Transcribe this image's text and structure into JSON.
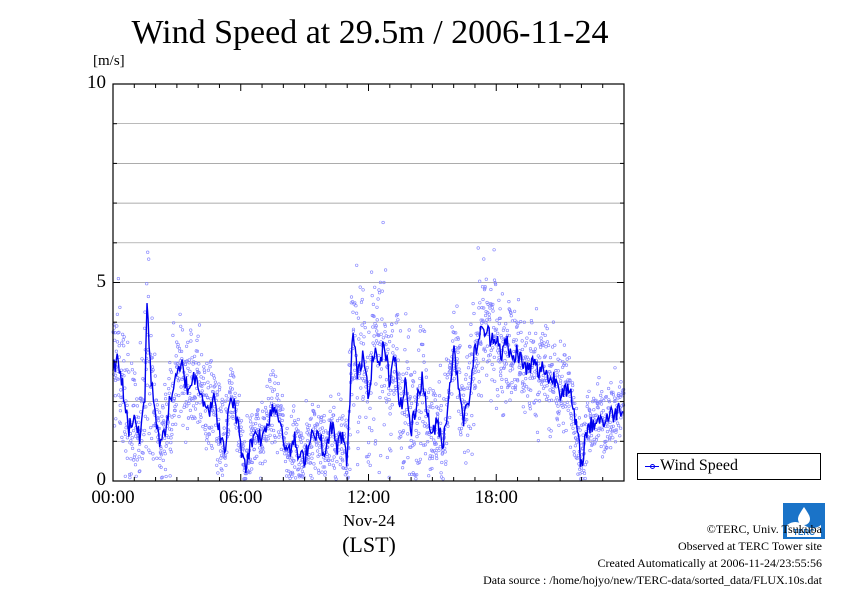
{
  "page": {
    "title": "Wind Speed at 29.5m / 2006-11-24",
    "credits": [
      "©TERC, Univ. Tsukuba",
      "Observed at TERC Tower site",
      "Created Automatically at 2006-11-24/23:55:56",
      "Data source : /home/hojyo/new/TERC-data/sorted_data/FLUX.10s.dat"
    ],
    "logo_text": "TERC"
  },
  "chart_data": {
    "type": "scatter",
    "title": "Wind Speed at 29.5m / 2006-11-24",
    "ylabel": "[m/s]",
    "xdate": "Nov-24",
    "xlabel": "(LST)",
    "x_unit": "hour (LST)",
    "xlim": [
      0,
      24
    ],
    "ylim": [
      0,
      10
    ],
    "x_ticks": [
      {
        "value": 0,
        "label": "00:00"
      },
      {
        "value": 6,
        "label": "06:00"
      },
      {
        "value": 12,
        "label": "12:00"
      },
      {
        "value": 18,
        "label": "18:00"
      }
    ],
    "y_ticks": [
      {
        "value": 0,
        "label": "0"
      },
      {
        "value": 5,
        "label": "5"
      },
      {
        "value": 10,
        "label": "10"
      }
    ],
    "grid": true,
    "legend": {
      "position": "bottom-right",
      "entries": [
        "Wind Speed"
      ]
    },
    "color": "#0000ee",
    "scatter_color": "#8080ff",
    "series": [
      {
        "name": "Wind Speed",
        "mean_line": {
          "x": [
            0,
            0.25,
            0.5,
            0.75,
            1.0,
            1.25,
            1.5,
            1.6,
            1.75,
            2.0,
            2.25,
            2.5,
            2.75,
            3.0,
            3.25,
            3.5,
            3.75,
            4.0,
            4.25,
            4.5,
            4.75,
            5.0,
            5.25,
            5.5,
            5.75,
            6.0,
            6.25,
            6.5,
            6.75,
            7.0,
            7.25,
            7.5,
            7.75,
            8.0,
            8.25,
            8.5,
            8.75,
            9.0,
            9.25,
            9.5,
            9.75,
            10.0,
            10.25,
            10.5,
            10.75,
            11.0,
            11.25,
            11.5,
            11.75,
            12.0,
            12.25,
            12.5,
            12.75,
            13.0,
            13.25,
            13.5,
            13.75,
            14.0,
            14.25,
            14.5,
            14.75,
            15.0,
            15.25,
            15.5,
            15.75,
            16.0,
            16.25,
            16.5,
            16.75,
            17.0,
            17.25,
            17.5,
            17.75,
            18.0,
            18.25,
            18.5,
            18.75,
            19.0,
            19.25,
            19.5,
            19.75,
            20.0,
            20.25,
            20.5,
            20.75,
            21.0,
            21.25,
            21.5,
            21.75,
            22.0,
            22.25,
            22.5,
            22.75,
            23.0,
            23.25,
            23.5,
            23.75,
            23.95
          ],
          "y": [
            2.8,
            3.1,
            2.2,
            1.3,
            1.7,
            1.0,
            2.2,
            4.6,
            2.8,
            1.7,
            0.8,
            1.5,
            2.2,
            2.6,
            2.9,
            2.3,
            2.6,
            2.5,
            2.1,
            1.8,
            2.0,
            1.3,
            0.6,
            2.2,
            1.8,
            0.9,
            0.4,
            1.0,
            1.3,
            1.0,
            1.5,
            1.9,
            1.7,
            1.2,
            0.6,
            1.1,
            0.5,
            0.6,
            1.1,
            1.3,
            1.0,
            0.6,
            1.5,
            0.8,
            1.2,
            0.4,
            3.8,
            2.6,
            3.3,
            2.2,
            3.4,
            2.8,
            3.5,
            2.4,
            3.2,
            1.8,
            2.5,
            1.2,
            2.0,
            2.6,
            1.8,
            1.1,
            1.5,
            0.9,
            2.1,
            3.3,
            2.4,
            1.5,
            2.2,
            3.3,
            3.7,
            3.8,
            3.6,
            3.7,
            3.2,
            3.5,
            3.0,
            3.3,
            2.9,
            2.8,
            3.0,
            2.7,
            2.9,
            2.5,
            2.6,
            2.3,
            2.4,
            2.1,
            1.4,
            0.4,
            1.3,
            1.4,
            1.6,
            1.5,
            1.6,
            1.7,
            1.8,
            1.9
          ]
        },
        "scatter_spread": {
          "x": [
            0,
            1,
            1.5,
            1.6,
            1.75,
            2,
            3,
            4,
            5,
            5.5,
            6,
            7,
            8,
            9,
            10,
            10.5,
            11,
            11.25,
            11.5,
            12,
            12.5,
            13,
            13.5,
            14,
            14.5,
            15,
            16,
            16.5,
            17,
            17.5,
            18,
            19,
            20,
            21,
            22,
            22.5,
            23,
            24
          ],
          "y": [
            1.2,
            1.1,
            1.5,
            2.5,
            1.2,
            0.8,
            0.9,
            0.9,
            0.8,
            0.6,
            0.6,
            0.6,
            0.6,
            0.6,
            0.7,
            0.6,
            0.8,
            1.5,
            1.5,
            1.5,
            1.5,
            1.4,
            1.3,
            1.3,
            1.1,
            1.0,
            0.9,
            0.9,
            1.1,
            1.1,
            1.0,
            0.9,
            0.9,
            0.8,
            0.7,
            0.5,
            0.6,
            0.6
          ]
        }
      }
    ]
  }
}
